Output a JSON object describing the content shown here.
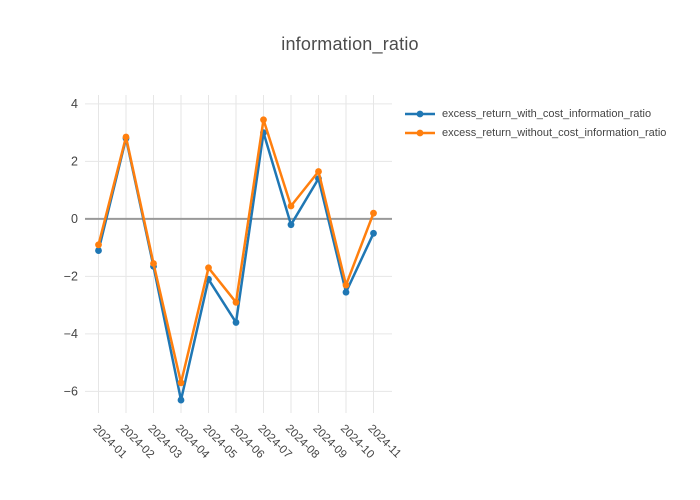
{
  "chart_data": {
    "type": "line",
    "title": "information_ratio",
    "xlabel": "",
    "ylabel": "",
    "categories": [
      "2024-01",
      "2024-02",
      "2024-03",
      "2024-04",
      "2024-05",
      "2024-06",
      "2024-07",
      "2024-08",
      "2024-09",
      "2024-10",
      "2024-11"
    ],
    "series": [
      {
        "name": "excess_return_with_cost_information_ratio",
        "color": "#1f77b4",
        "marker": "circle",
        "values": [
          -1.1,
          2.8,
          -1.65,
          -6.3,
          -2.1,
          -3.6,
          3.0,
          -0.2,
          1.4,
          -2.55,
          -0.5
        ]
      },
      {
        "name": "excess_return_without_cost_information_ratio",
        "color": "#ff7f0e",
        "marker": "circle",
        "values": [
          -0.9,
          2.85,
          -1.55,
          -5.7,
          -1.7,
          -2.9,
          3.45,
          0.45,
          1.65,
          -2.3,
          0.2
        ]
      }
    ],
    "ytick_values": [
      4,
      2,
      0,
      -2,
      -4,
      -6
    ],
    "ylim": [
      -6.75,
      4.31
    ],
    "grid": true,
    "zeroline": true,
    "legend_position": "top-right",
    "style": {
      "background": "#ffffff",
      "grid_color": "#e6e6e6",
      "zeroline_color": "#999999",
      "tick_text_color": "#444444",
      "title_color": "#4c4c4c",
      "legend_text_color": "#444444"
    }
  }
}
